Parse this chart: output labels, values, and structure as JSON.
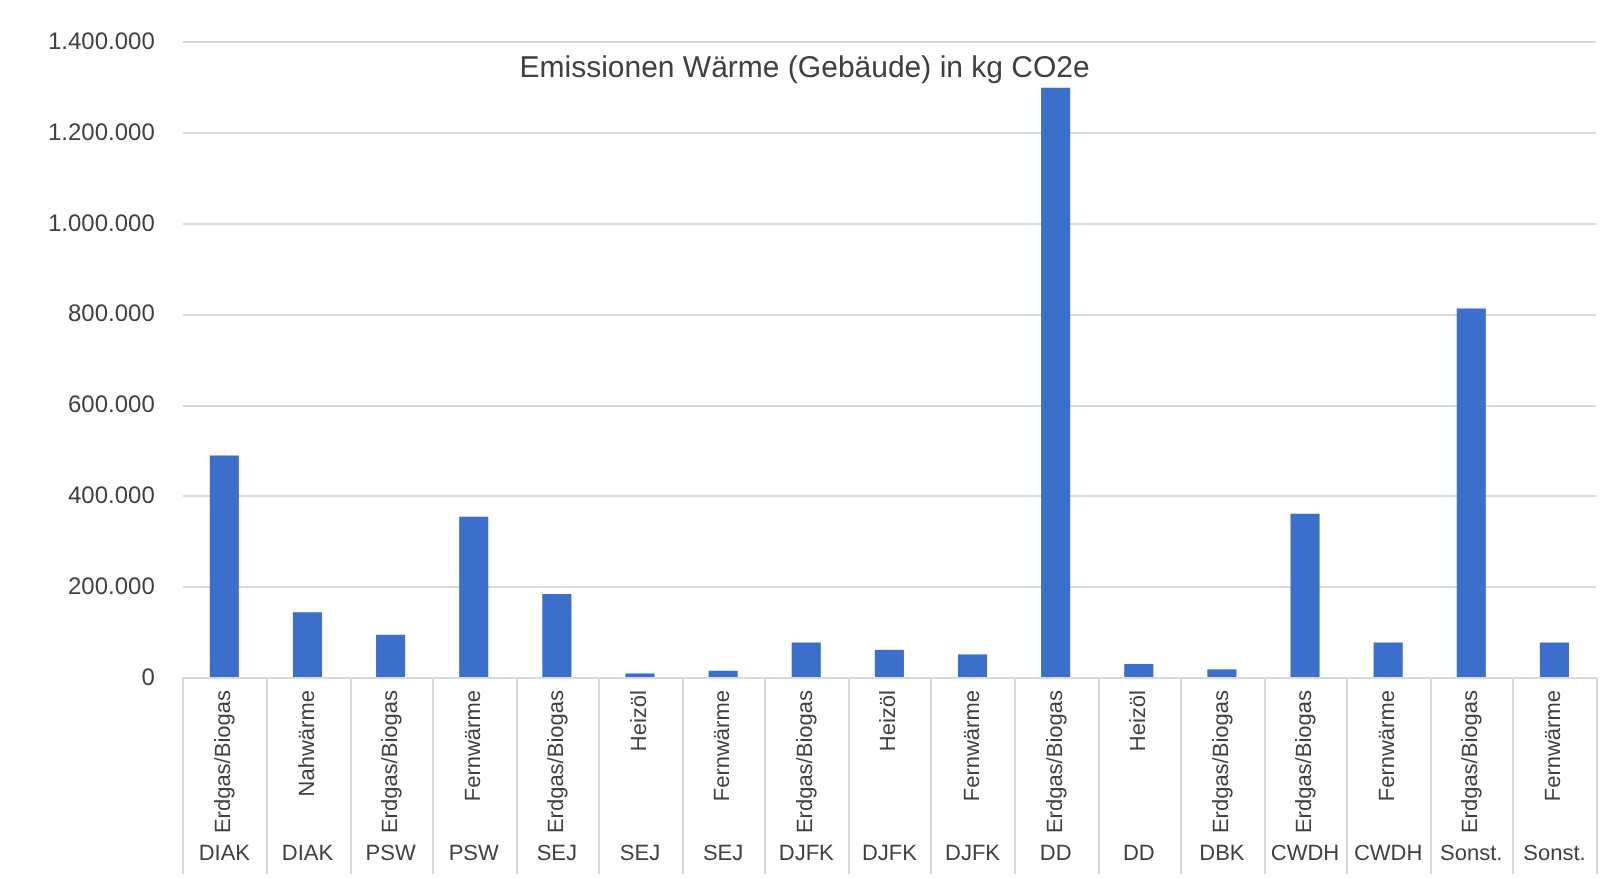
{
  "chart_data": {
    "type": "bar",
    "title": "Emissionen Wärme (Gebäude) in kg CO2e",
    "categories": [
      "Erdgas/Biogas\nDIAK",
      "Nahwärme\nDIAK",
      "Erdgas/Biogas\nPSW",
      "Fernwärme\nPSW",
      "Erdgas/Biogas\nSEJ",
      "Heizöl\nSEJ",
      "Fernwärme\nSEJ",
      "Erdgas/Biogas\nDJFK",
      "Heizöl\nDJFK",
      "Fernwärme\nDJFK",
      "Erdgas/Biogas\nDD",
      "Heizöl\nDD",
      "Erdgas/Biogas\nDBK",
      "Erdgas/Biogas\nCWDH",
      "Fernwärme\nCWDH",
      "Erdgas/Biogas\nSonst.",
      "Fernwärme\nSonst."
    ],
    "values": [
      490000,
      145000,
      95000,
      355000,
      185000,
      10000,
      16000,
      78000,
      62000,
      52000,
      1300000,
      31000,
      19000,
      362000,
      78000,
      814000,
      78000
    ],
    "color": "#3b6fcb",
    "ylim": [
      0,
      1400000
    ],
    "yticks": [
      {
        "value": 0,
        "label": "0"
      },
      {
        "value": 200000,
        "label": "200.000"
      },
      {
        "value": 400000,
        "label": "400.000"
      },
      {
        "value": 600000,
        "label": "600.000"
      },
      {
        "value": 800000,
        "label": "800.000"
      },
      {
        "value": 1000000,
        "label": "1.000.000"
      },
      {
        "value": 1200000,
        "label": "1.200.000"
      },
      {
        "value": 1400000,
        "label": "1.400.000"
      }
    ],
    "grid": "y",
    "legend": false
  }
}
